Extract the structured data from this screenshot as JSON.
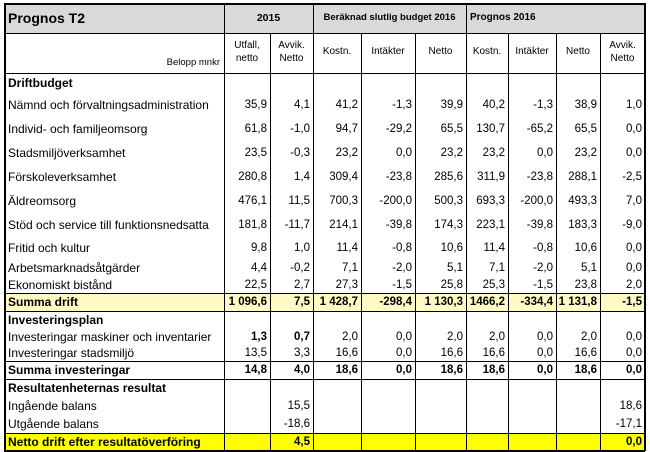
{
  "title": "Prognos T2",
  "unit_label": "Belopp mnkr",
  "groups": {
    "year2015": "2015",
    "budget": "Beräknad slutlig budget 2016",
    "prognos": "Prognos 2016"
  },
  "columns": [
    "Utfall, netto",
    "Avvik. Netto",
    "Kostn.",
    "Intäkter",
    "Netto",
    "Kostn.",
    "Intäkter",
    "Netto",
    "Avvik. Netto"
  ],
  "colors": {
    "highlight_light": "#fff9c4",
    "highlight_strong": "#ffff00",
    "border": "#000000"
  },
  "rows": [
    {
      "label": "Driftbudget",
      "type": "section",
      "values": []
    },
    {
      "label": "Nämnd och förvaltningsadministration",
      "type": "data",
      "values": [
        "35,9",
        "4,1",
        "41,2",
        "-1,3",
        "39,9",
        "40,2",
        "-1,3",
        "38,9",
        "1,0"
      ]
    },
    {
      "label": "Individ- och familjeomsorg",
      "type": "data",
      "values": [
        "61,8",
        "-1,0",
        "94,7",
        "-29,2",
        "65,5",
        "130,7",
        "-65,2",
        "65,5",
        "0,0"
      ]
    },
    {
      "label": "Stadsmiljöverksamhet",
      "type": "data",
      "values": [
        "23,5",
        "-0,3",
        "23,2",
        "0,0",
        "23,2",
        "23,2",
        "0,0",
        "23,2",
        "0,0"
      ]
    },
    {
      "label": "Förskoleverksamhet",
      "type": "data",
      "values": [
        "280,8",
        "1,4",
        "309,4",
        "-23,8",
        "285,6",
        "311,9",
        "-23,8",
        "288,1",
        "-2,5"
      ]
    },
    {
      "label": "Äldreomsorg",
      "type": "data",
      "values": [
        "476,1",
        "11,5",
        "700,3",
        "-200,0",
        "500,3",
        "693,3",
        "-200,0",
        "493,3",
        "7,0"
      ]
    },
    {
      "label": "Stöd och service till funktionsnedsatta",
      "type": "data",
      "values": [
        "181,8",
        "-11,7",
        "214,1",
        "-39,8",
        "174,3",
        "223,1",
        "-39,8",
        "183,3",
        "-9,0"
      ]
    },
    {
      "label": "Fritid och kultur",
      "type": "data",
      "values": [
        "9,8",
        "1,0",
        "11,4",
        "-0,8",
        "10,6",
        "11,4",
        "-0,8",
        "10,6",
        "0,0"
      ]
    },
    {
      "label": "Arbetsmarknadsåtgärder",
      "type": "data",
      "values": [
        "4,4",
        "-0,2",
        "7,1",
        "-2,0",
        "5,1",
        "7,1",
        "-2,0",
        "5,1",
        "0,0"
      ]
    },
    {
      "label": "Ekonomiskt bistånd",
      "type": "data",
      "values": [
        "22,5",
        "2,7",
        "27,3",
        "-1,5",
        "25,8",
        "25,3",
        "-1,5",
        "23,8",
        "2,0"
      ]
    },
    {
      "label": "Summa drift",
      "type": "sum_highlight",
      "values": [
        "1 096,6",
        "7,5",
        "1 428,7",
        "-298,4",
        "1 130,3",
        "1466,2",
        "-334,4",
        "1 131,8",
        "-1,5"
      ]
    },
    {
      "label": "Investeringsplan",
      "type": "section",
      "values": []
    },
    {
      "label": "Investeringar maskiner och inventarier",
      "type": "data_boldfirst",
      "values": [
        "1,3",
        "0,7",
        "2,0",
        "0,0",
        "2,0",
        "2,0",
        "0,0",
        "2,0",
        "0,0"
      ]
    },
    {
      "label": "Investeringar stadsmiljö",
      "type": "data",
      "values": [
        "13,5",
        "3,3",
        "16,6",
        "0,0",
        "16,6",
        "16,6",
        "0,0",
        "16,6",
        "0,0"
      ]
    },
    {
      "label": "Summa investeringar",
      "type": "sum",
      "values": [
        "14,8",
        "4,0",
        "18,6",
        "0,0",
        "18,6",
        "18,6",
        "0,0",
        "18,6",
        "0,0"
      ]
    },
    {
      "label": "Resultatenheternas resultat",
      "type": "section",
      "values": []
    },
    {
      "label": "Ingående balans",
      "type": "data",
      "values": [
        "",
        "15,5",
        "",
        "",
        "",
        "",
        "",
        "",
        "18,6"
      ]
    },
    {
      "label": "Utgående balans",
      "type": "data",
      "values": [
        "",
        "-18,6",
        "",
        "",
        "",
        "",
        "",
        "",
        "-17,1"
      ]
    },
    {
      "label": "Netto drift efter resultatöverföring",
      "type": "final",
      "values": [
        "",
        "4,5",
        "",
        "",
        "",
        "",
        "",
        "",
        "0,0"
      ]
    }
  ]
}
